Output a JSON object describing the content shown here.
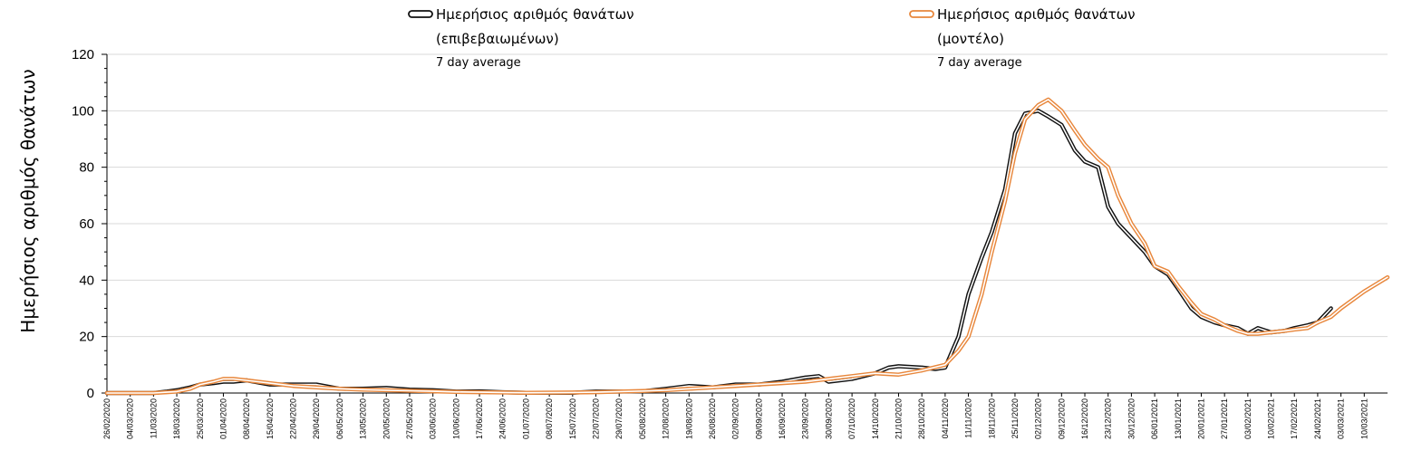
{
  "chart_data": {
    "type": "line",
    "title": "",
    "xlabel": "",
    "ylabel": "Ημερήσιος αριθμός θανάτων",
    "ylim": [
      0,
      120
    ],
    "yticks": [
      "0",
      "20",
      "40",
      "60",
      "80",
      "100",
      "120"
    ],
    "grid": true,
    "legend_position": "top",
    "x_start": "26/02/2020",
    "x_end": "17/03/2021",
    "x_tick_labels": [
      "26/02/2020",
      "04/03/2020",
      "11/03/2020",
      "18/03/2020",
      "25/03/2020",
      "01/04/2020",
      "08/04/2020",
      "15/04/2020",
      "22/04/2020",
      "29/04/2020",
      "06/05/2020",
      "13/05/2020",
      "20/05/2020",
      "27/05/2020",
      "03/06/2020",
      "10/06/2020",
      "17/06/2020",
      "24/06/2020",
      "01/07/2020",
      "08/07/2020",
      "15/07/2020",
      "22/07/2020",
      "29/07/2020",
      "05/08/2020",
      "12/08/2020",
      "19/08/2020",
      "26/08/2020",
      "02/09/2020",
      "09/09/2020",
      "16/09/2020",
      "23/09/2020",
      "30/09/2020",
      "07/10/2020",
      "14/10/2020",
      "21/10/2020",
      "28/10/2020",
      "04/11/2020",
      "11/11/2020",
      "18/11/2020",
      "25/11/2020",
      "02/12/2020",
      "09/12/2020",
      "16/12/2020",
      "23/12/2020",
      "30/12/2020",
      "06/01/2021",
      "13/01/2021",
      "20/01/2021",
      "27/01/2021",
      "03/02/2021",
      "10/02/2021",
      "17/02/2021",
      "24/02/2021",
      "03/03/2021",
      "10/03/2021"
    ],
    "series": [
      {
        "name": "Ημερήσιος αριθμός θανάτων (επιβεβαιωμένων)",
        "subtitle": "7 day average",
        "color": "#111111",
        "x": [
          "26/02/2020",
          "11/03/2020",
          "15/03/2020",
          "18/03/2020",
          "22/03/2020",
          "25/03/2020",
          "29/03/2020",
          "01/04/2020",
          "04/04/2020",
          "08/04/2020",
          "15/04/2020",
          "22/04/2020",
          "29/04/2020",
          "06/05/2020",
          "13/05/2020",
          "20/05/2020",
          "27/05/2020",
          "03/06/2020",
          "10/06/2020",
          "17/06/2020",
          "24/06/2020",
          "01/07/2020",
          "15/07/2020",
          "22/07/2020",
          "29/07/2020",
          "05/08/2020",
          "12/08/2020",
          "19/08/2020",
          "26/08/2020",
          "02/09/2020",
          "09/09/2020",
          "16/09/2020",
          "23/09/2020",
          "27/09/2020",
          "30/09/2020",
          "07/10/2020",
          "14/10/2020",
          "18/10/2020",
          "21/10/2020",
          "28/10/2020",
          "01/11/2020",
          "04/11/2020",
          "08/11/2020",
          "11/11/2020",
          "15/11/2020",
          "18/11/2020",
          "22/11/2020",
          "25/11/2020",
          "28/11/2020",
          "02/12/2020",
          "05/12/2020",
          "09/12/2020",
          "13/12/2020",
          "16/12/2020",
          "20/12/2020",
          "23/12/2020",
          "26/12/2020",
          "30/12/2020",
          "03/01/2021",
          "06/01/2021",
          "10/01/2021",
          "13/01/2021",
          "17/01/2021",
          "20/01/2021",
          "24/01/2021",
          "27/01/2021",
          "31/01/2021",
          "03/02/2021",
          "06/02/2021",
          "10/02/2021",
          "14/02/2021",
          "17/02/2021",
          "21/02/2021",
          "24/02/2021",
          "28/02/2021"
        ],
        "y": [
          0,
          0,
          0.5,
          1,
          2,
          3,
          3.5,
          4,
          4,
          4.5,
          3,
          3,
          3,
          1.5,
          1.5,
          1.8,
          1.2,
          1,
          0.5,
          0.6,
          0.3,
          0.1,
          0.1,
          0.5,
          0.5,
          0.6,
          1.5,
          2.5,
          2,
          3,
          3,
          4,
          5.5,
          6,
          4,
          5,
          7,
          9,
          9.5,
          9,
          8.5,
          9,
          20,
          35,
          48,
          57,
          72,
          92,
          99,
          100,
          98,
          95,
          86,
          82,
          80,
          66,
          60,
          55,
          50,
          45,
          42,
          37,
          30,
          27,
          25,
          24,
          23,
          21,
          23,
          21.5,
          22,
          23,
          24,
          25,
          30
        ]
      },
      {
        "name": "Ημερήσιος αριθμός θανάτων (μοντέλο)",
        "subtitle": "7 day average",
        "color": "#E8873C",
        "x": [
          "26/02/2020",
          "11/03/2020",
          "15/03/2020",
          "18/03/2020",
          "22/03/2020",
          "25/03/2020",
          "29/03/2020",
          "01/04/2020",
          "04/04/2020",
          "08/04/2020",
          "15/04/2020",
          "22/04/2020",
          "29/04/2020",
          "06/05/2020",
          "13/05/2020",
          "20/05/2020",
          "27/05/2020",
          "03/06/2020",
          "10/06/2020",
          "17/06/2020",
          "24/06/2020",
          "01/07/2020",
          "15/07/2020",
          "22/07/2020",
          "29/07/2020",
          "05/08/2020",
          "12/08/2020",
          "19/08/2020",
          "26/08/2020",
          "02/09/2020",
          "09/09/2020",
          "16/09/2020",
          "23/09/2020",
          "30/09/2020",
          "07/10/2020",
          "14/10/2020",
          "21/10/2020",
          "28/10/2020",
          "04/11/2020",
          "08/11/2020",
          "11/11/2020",
          "15/11/2020",
          "18/11/2020",
          "22/11/2020",
          "25/11/2020",
          "28/11/2020",
          "02/12/2020",
          "05/12/2020",
          "09/12/2020",
          "13/12/2020",
          "16/12/2020",
          "20/12/2020",
          "23/12/2020",
          "26/12/2020",
          "30/12/2020",
          "03/01/2021",
          "06/01/2021",
          "10/01/2021",
          "13/01/2021",
          "17/01/2021",
          "20/01/2021",
          "24/01/2021",
          "27/01/2021",
          "31/01/2021",
          "03/02/2021",
          "06/02/2021",
          "10/02/2021",
          "14/02/2021",
          "17/02/2021",
          "21/02/2021",
          "24/02/2021",
          "28/02/2021",
          "03/03/2021",
          "10/03/2021",
          "17/03/2021"
        ],
        "y": [
          0,
          0,
          0.3,
          0.5,
          1.5,
          3,
          4,
          5,
          5,
          4.5,
          3.5,
          2.5,
          2,
          1.5,
          1.2,
          1,
          0.8,
          0.6,
          0.4,
          0.3,
          0.2,
          0.1,
          0.2,
          0.3,
          0.5,
          0.7,
          1,
          1.5,
          2,
          2.5,
          3,
          3.5,
          4,
          5,
          6,
          7,
          6.5,
          8,
          10,
          15,
          20,
          35,
          50,
          68,
          85,
          97,
          102,
          104,
          100,
          93,
          88,
          83,
          80,
          70,
          60,
          53,
          45,
          43,
          38,
          32,
          28,
          26,
          24,
          22,
          21,
          21,
          21.5,
          22,
          22.5,
          23,
          25,
          27,
          30,
          36,
          41
        ]
      }
    ]
  }
}
